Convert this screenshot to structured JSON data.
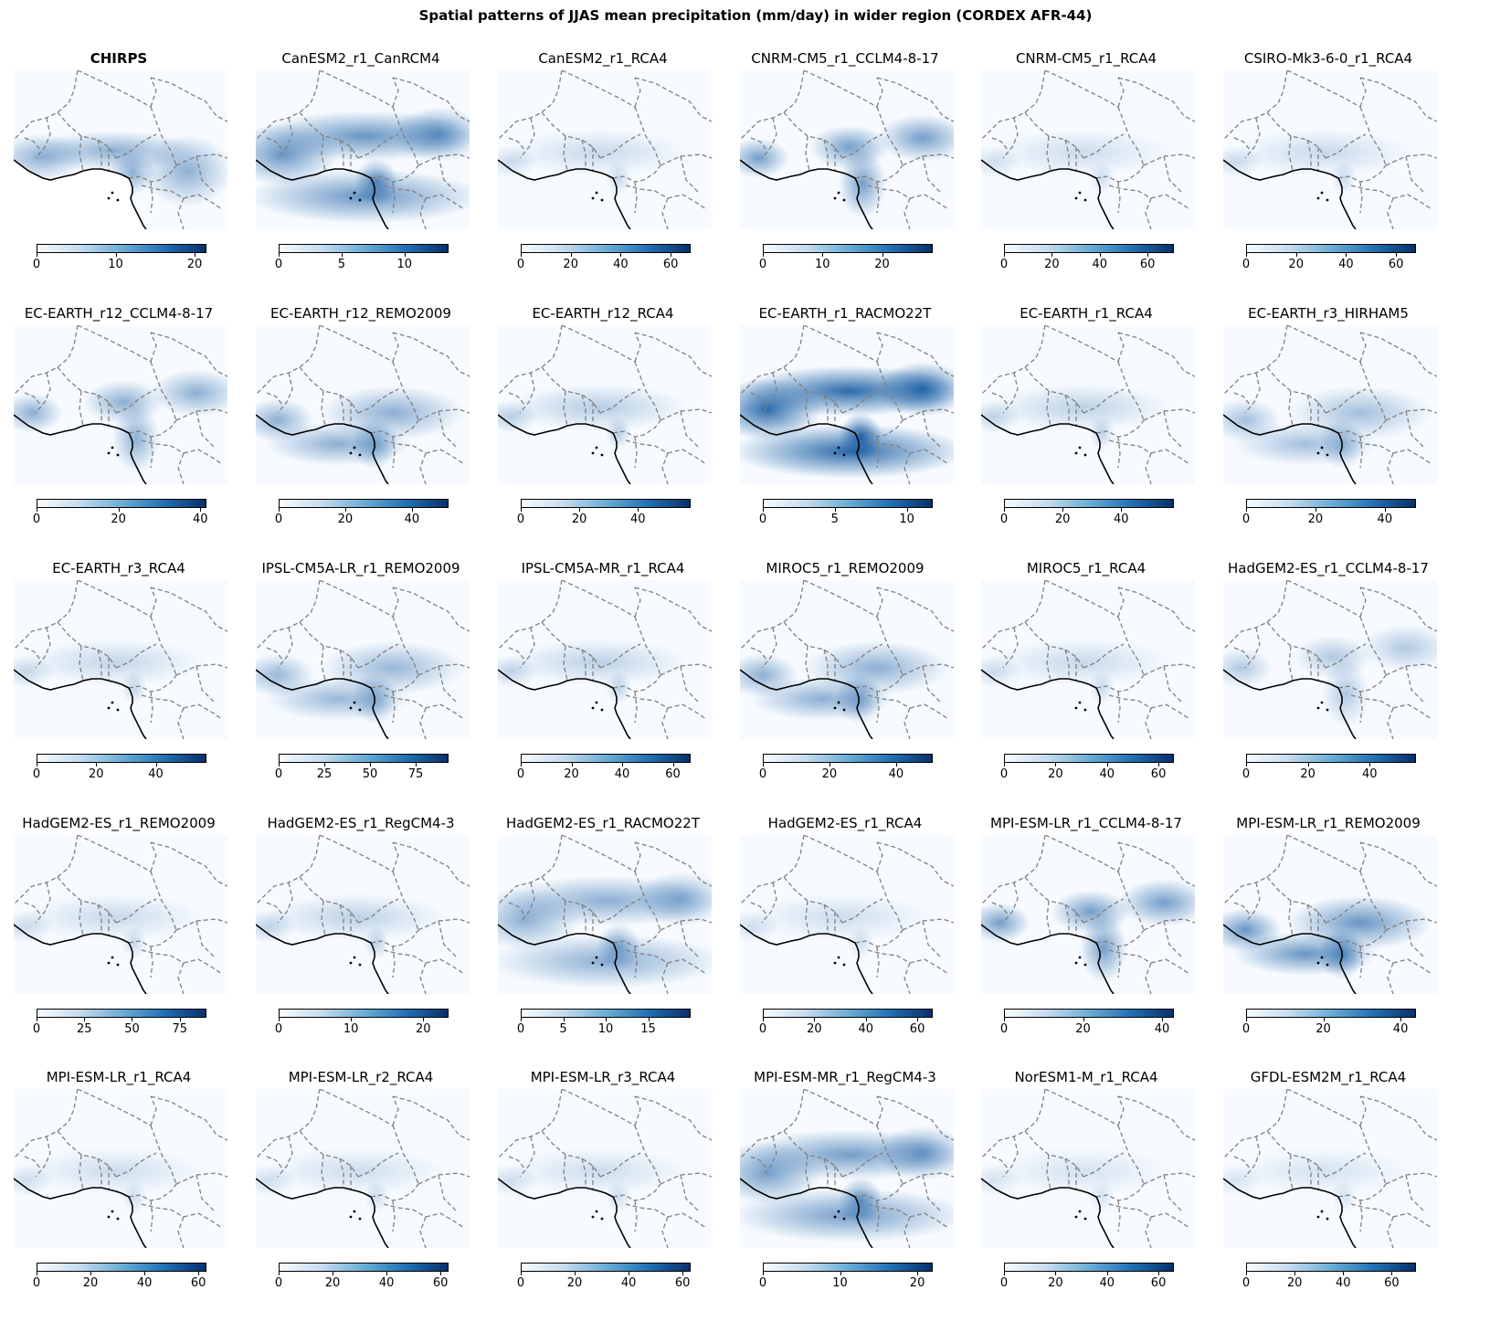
{
  "title": "Spatial patterns of JJAS mean precipitation (mm/day) in wider region (CORDEX AFR-44)",
  "colors": {
    "low": "#f7fbff",
    "mid": "#6baed6",
    "high": "#08306b",
    "border": "#808080",
    "coast": "#000000"
  },
  "chart_data": [
    {
      "type": "heatmap",
      "title": "CHIRPS",
      "bold": true,
      "vmax": 21.5,
      "ticks": [
        0,
        10,
        20
      ],
      "colormap": "Blues",
      "style": "chirps",
      "intensity": 0.45
    },
    {
      "type": "heatmap",
      "title": "CanESM2_r1_CanRCM4",
      "vmax": 13.5,
      "ticks": [
        0,
        5,
        10
      ],
      "colormap": "Blues",
      "style": "band",
      "intensity": 0.6
    },
    {
      "type": "heatmap",
      "title": "CanESM2_r1_RCA4",
      "vmax": 68,
      "ticks": [
        0,
        20,
        40,
        60
      ],
      "colormap": "Blues",
      "style": "coastal",
      "intensity": 0.2
    },
    {
      "type": "heatmap",
      "title": "CNRM-CM5_r1_CCLM4-8-17",
      "vmax": 28.5,
      "ticks": [
        0,
        10,
        20
      ],
      "colormap": "Blues",
      "style": "cameroon",
      "intensity": 0.55
    },
    {
      "type": "heatmap",
      "title": "CNRM-CM5_r1_RCA4",
      "vmax": 71,
      "ticks": [
        0,
        20,
        40,
        60
      ],
      "colormap": "Blues",
      "style": "coastal",
      "intensity": 0.18
    },
    {
      "type": "heatmap",
      "title": "CSIRO-Mk3-6-0_r1_RCA4",
      "vmax": 68,
      "ticks": [
        0,
        20,
        40,
        60
      ],
      "colormap": "Blues",
      "style": "coastal",
      "intensity": 0.2
    },
    {
      "type": "heatmap",
      "title": "EC-EARTH_r12_CCLM4-8-17",
      "vmax": 41.5,
      "ticks": [
        0,
        20,
        40
      ],
      "colormap": "Blues",
      "style": "cameroon",
      "intensity": 0.45
    },
    {
      "type": "heatmap",
      "title": "EC-EARTH_r12_REMO2009",
      "vmax": 51,
      "ticks": [
        0,
        20,
        40
      ],
      "colormap": "Blues",
      "style": "ocean",
      "intensity": 0.45
    },
    {
      "type": "heatmap",
      "title": "EC-EARTH_r12_RCA4",
      "vmax": 58,
      "ticks": [
        0,
        20,
        40
      ],
      "colormap": "Blues",
      "style": "coastal",
      "intensity": 0.28
    },
    {
      "type": "heatmap",
      "title": "EC-EARTH_r1_RACMO22T",
      "vmax": 11.8,
      "ticks": [
        0,
        5,
        10
      ],
      "colormap": "Blues",
      "style": "band",
      "intensity": 0.85
    },
    {
      "type": "heatmap",
      "title": "EC-EARTH_r1_RCA4",
      "vmax": 58,
      "ticks": [
        0,
        20,
        40
      ],
      "colormap": "Blues",
      "style": "coastal",
      "intensity": 0.25
    },
    {
      "type": "heatmap",
      "title": "EC-EARTH_r3_HIRHAM5",
      "vmax": 49,
      "ticks": [
        0,
        20,
        40
      ],
      "colormap": "Blues",
      "style": "ocean",
      "intensity": 0.35
    },
    {
      "type": "heatmap",
      "title": "EC-EARTH_r3_RCA4",
      "vmax": 57,
      "ticks": [
        0,
        20,
        40
      ],
      "colormap": "Blues",
      "style": "coastal",
      "intensity": 0.22
    },
    {
      "type": "heatmap",
      "title": "IPSL-CM5A-LR_r1_REMO2009",
      "vmax": 93,
      "ticks": [
        0,
        25,
        50,
        75
      ],
      "colormap": "Blues",
      "style": "ocean",
      "intensity": 0.4
    },
    {
      "type": "heatmap",
      "title": "IPSL-CM5A-MR_r1_RCA4",
      "vmax": 67,
      "ticks": [
        0,
        20,
        40,
        60
      ],
      "colormap": "Blues",
      "style": "coastal",
      "intensity": 0.25
    },
    {
      "type": "heatmap",
      "title": "MIROC5_r1_REMO2009",
      "vmax": 51,
      "ticks": [
        0,
        20,
        40
      ],
      "colormap": "Blues",
      "style": "ocean",
      "intensity": 0.45
    },
    {
      "type": "heatmap",
      "title": "MIROC5_r1_RCA4",
      "vmax": 66,
      "ticks": [
        0,
        20,
        40,
        60
      ],
      "colormap": "Blues",
      "style": "coastal",
      "intensity": 0.2
    },
    {
      "type": "heatmap",
      "title": "HadGEM2-ES_r1_CCLM4-8-17",
      "vmax": 55,
      "ticks": [
        0,
        20,
        40
      ],
      "colormap": "Blues",
      "style": "cameroon",
      "intensity": 0.3
    },
    {
      "type": "heatmap",
      "title": "HadGEM2-ES_r1_REMO2009",
      "vmax": 89,
      "ticks": [
        0,
        25,
        50,
        75
      ],
      "colormap": "Blues",
      "style": "coastal",
      "intensity": 0.2
    },
    {
      "type": "heatmap",
      "title": "HadGEM2-ES_r1_RegCM4-3",
      "vmax": 23.5,
      "ticks": [
        0,
        10,
        20
      ],
      "colormap": "Blues",
      "style": "coastal",
      "intensity": 0.25
    },
    {
      "type": "heatmap",
      "title": "HadGEM2-ES_r1_RACMO22T",
      "vmax": 20,
      "ticks": [
        0,
        5,
        10,
        15
      ],
      "colormap": "Blues",
      "style": "band",
      "intensity": 0.45
    },
    {
      "type": "heatmap",
      "title": "HadGEM2-ES_r1_RCA4",
      "vmax": 66,
      "ticks": [
        0,
        20,
        40,
        60
      ],
      "colormap": "Blues",
      "style": "coastal",
      "intensity": 0.18
    },
    {
      "type": "heatmap",
      "title": "MPI-ESM-LR_r1_CCLM4-8-17",
      "vmax": 43,
      "ticks": [
        0,
        20,
        40
      ],
      "colormap": "Blues",
      "style": "cameroon",
      "intensity": 0.55
    },
    {
      "type": "heatmap",
      "title": "MPI-ESM-LR_r1_REMO2009",
      "vmax": 44,
      "ticks": [
        0,
        20,
        40
      ],
      "colormap": "Blues",
      "style": "ocean",
      "intensity": 0.6
    },
    {
      "type": "heatmap",
      "title": "MPI-ESM-LR_r1_RCA4",
      "vmax": 63,
      "ticks": [
        0,
        20,
        40,
        60
      ],
      "colormap": "Blues",
      "style": "coastal",
      "intensity": 0.18
    },
    {
      "type": "heatmap",
      "title": "MPI-ESM-LR_r2_RCA4",
      "vmax": 63,
      "ticks": [
        0,
        20,
        40,
        60
      ],
      "colormap": "Blues",
      "style": "coastal",
      "intensity": 0.18
    },
    {
      "type": "heatmap",
      "title": "MPI-ESM-LR_r3_RCA4",
      "vmax": 63,
      "ticks": [
        0,
        20,
        40,
        60
      ],
      "colormap": "Blues",
      "style": "coastal",
      "intensity": 0.18
    },
    {
      "type": "heatmap",
      "title": "MPI-ESM-MR_r1_RegCM4-3",
      "vmax": 22,
      "ticks": [
        0,
        10,
        20
      ],
      "colormap": "Blues",
      "style": "band",
      "intensity": 0.55
    },
    {
      "type": "heatmap",
      "title": "NorESM1-M_r1_RCA4",
      "vmax": 66,
      "ticks": [
        0,
        20,
        40,
        60
      ],
      "colormap": "Blues",
      "style": "coastal",
      "intensity": 0.15
    },
    {
      "type": "heatmap",
      "title": "GFDL-ESM2M_r1_RCA4",
      "vmax": 70,
      "ticks": [
        0,
        20,
        40,
        60
      ],
      "colormap": "Blues",
      "style": "coastal",
      "intensity": 0.15
    }
  ]
}
